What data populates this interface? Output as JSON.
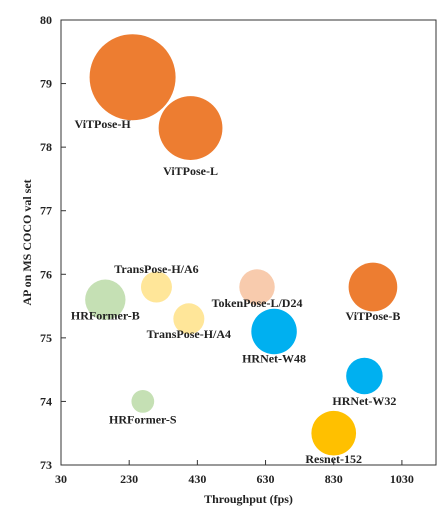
{
  "chart_data": {
    "type": "scatter",
    "title": "",
    "xlabel": "Throughput (fps)",
    "ylabel": "AP on MS COCO val set",
    "xlim": [
      30,
      1130
    ],
    "ylim": [
      73,
      80
    ],
    "xticks": [
      30,
      230,
      430,
      630,
      830,
      1030
    ],
    "xtick_labels": [
      "30",
      "230",
      "430",
      "630",
      "830",
      "1030"
    ],
    "yticks": [
      73,
      74,
      75,
      76,
      77,
      78,
      79,
      80
    ],
    "ytick_labels": [
      "73",
      "74",
      "75",
      "76",
      "77",
      "78",
      "79",
      "80"
    ],
    "grid": false,
    "legend": "none",
    "points": [
      {
        "name": "ViTPose-H",
        "x": 240,
        "y": 79.1,
        "size": 1.0,
        "color": "#ED7D31"
      },
      {
        "name": "ViTPose-L",
        "x": 410,
        "y": 78.3,
        "size": 0.55,
        "color": "#ED7D31"
      },
      {
        "name": "ViTPose-B",
        "x": 945,
        "y": 75.8,
        "size": 0.32,
        "color": "#ED7D31"
      },
      {
        "name": "TransPose-H/A6",
        "x": 310,
        "y": 75.8,
        "size": 0.13,
        "color": "#FFE699"
      },
      {
        "name": "TransPose-H/A4",
        "x": 405,
        "y": 75.3,
        "size": 0.13,
        "color": "#FFE699"
      },
      {
        "name": "TokenPose-L/D24",
        "x": 605,
        "y": 75.8,
        "size": 0.17,
        "color": "#F8CBAD"
      },
      {
        "name": "HRFormer-B",
        "x": 160,
        "y": 75.6,
        "size": 0.22,
        "color": "#C5E0B4"
      },
      {
        "name": "HRFormer-S",
        "x": 270,
        "y": 74.0,
        "size": 0.07,
        "color": "#C5E0B4"
      },
      {
        "name": "HRNet-W48",
        "x": 655,
        "y": 75.1,
        "size": 0.28,
        "color": "#00B0F0"
      },
      {
        "name": "HRNet-W32",
        "x": 920,
        "y": 74.4,
        "size": 0.18,
        "color": "#00B0F0"
      },
      {
        "name": "Resnet-152",
        "x": 830,
        "y": 73.5,
        "size": 0.27,
        "color": "#FFC000"
      }
    ]
  }
}
